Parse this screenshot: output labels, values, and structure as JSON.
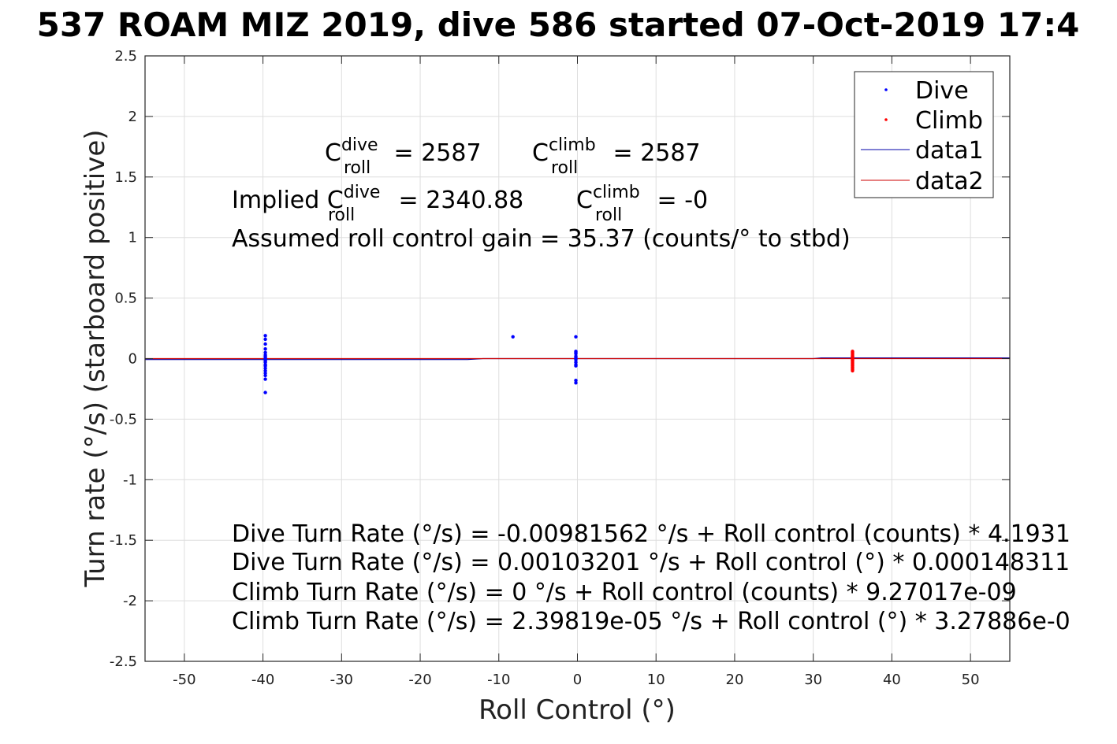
{
  "chart_data": {
    "type": "scatter",
    "title": "537 ROAM MIZ 2019, dive 586 started 07-Oct-2019 17:4",
    "xlabel": "Roll Control (°)",
    "ylabel": "Turn rate (°/s) (starboard positive)",
    "xlim": [
      -55,
      55
    ],
    "ylim": [
      -2.5,
      2.5
    ],
    "xticks": [
      -50,
      -40,
      -30,
      -20,
      -10,
      0,
      10,
      20,
      30,
      40,
      50
    ],
    "yticks": [
      -2.5,
      -2,
      -1.5,
      -1,
      -0.5,
      0,
      0.5,
      1,
      1.5,
      2,
      2.5
    ],
    "xtick_labels": [
      "-50",
      "-40",
      "-30",
      "-20",
      "-10",
      "0",
      "10",
      "20",
      "30",
      "40",
      "50"
    ],
    "ytick_labels": [
      "-2.5",
      "-2",
      "-1.5",
      "-1",
      "-0.5",
      "0",
      "0.5",
      "1",
      "1.5",
      "2",
      "2.5"
    ],
    "grid": true,
    "legend_position": "top-right",
    "series": [
      {
        "name": "Dive",
        "kind": "points",
        "color": "#0000ff",
        "x": [
          -39.7,
          -39.7,
          -39.7,
          -39.7,
          -39.7,
          -39.7,
          -39.7,
          -39.7,
          -39.7,
          -39.7,
          -39.7,
          -39.7,
          -39.7,
          -39.7,
          -39.7,
          -39.7,
          -39.7,
          -39.7,
          -39.7,
          -39.7,
          -8.2,
          -0.2,
          -0.2,
          -0.2,
          -0.2,
          -0.2,
          -0.2,
          -0.2,
          -0.2,
          -0.2,
          -0.2,
          -0.2,
          -0.2,
          -0.2
        ],
        "y": [
          0.19,
          0.16,
          0.12,
          0.08,
          0.05,
          0.03,
          0.02,
          0.01,
          0.0,
          -0.01,
          -0.02,
          -0.03,
          -0.05,
          -0.06,
          -0.08,
          -0.1,
          -0.12,
          -0.14,
          -0.17,
          -0.28,
          0.18,
          0.18,
          0.06,
          0.05,
          0.04,
          0.02,
          0.01,
          0.0,
          -0.01,
          -0.03,
          -0.05,
          -0.06,
          -0.18,
          -0.2
        ]
      },
      {
        "name": "Climb",
        "kind": "points",
        "color": "#ff0000",
        "x": [
          35.0,
          35.0,
          35.0,
          35.0,
          35.0,
          35.0,
          35.0,
          35.0,
          35.0,
          35.0,
          35.0,
          35.0,
          35.0,
          35.0,
          35.0,
          35.0,
          35.0,
          35.0,
          35.0,
          35.0
        ],
        "y": [
          0.06,
          0.05,
          0.04,
          0.03,
          0.02,
          0.01,
          0.0,
          0.0,
          -0.01,
          -0.01,
          -0.02,
          -0.03,
          -0.04,
          -0.05,
          -0.06,
          -0.07,
          -0.08,
          -0.09,
          -0.1,
          0.02
        ]
      },
      {
        "name": "data1",
        "kind": "line",
        "color": "#0000aa",
        "x": [
          -55,
          -14,
          -12,
          30,
          31,
          55
        ],
        "y": [
          -0.008,
          -0.008,
          0.0,
          0.0,
          0.006,
          0.006
        ]
      },
      {
        "name": "data2",
        "kind": "line",
        "color": "#cc0000",
        "x": [
          -55,
          55
        ],
        "y": [
          0.0,
          0.0
        ]
      }
    ],
    "annotations": {
      "c_roll_dive": {
        "C": "C",
        "sup": "dive",
        "sub": "roll",
        "rest": " = 2587"
      },
      "c_roll_climb": {
        "C": "C",
        "sup": "climb",
        "sub": "roll",
        "rest": " = 2587"
      },
      "implied_dive": {
        "prefix": "Implied C",
        "sup": "dive",
        "sub": "roll",
        "rest": " = 2340.88"
      },
      "implied_climb": {
        "C": "C",
        "sup": "climb",
        "sub": "roll",
        "rest": " = -0"
      },
      "gain": "Assumed roll control gain = 35.37 (counts/° to stbd)",
      "eq1": "Dive Turn Rate (°/s) = -0.00981562 °/s + Roll control (counts) * 4.1931",
      "eq2": "Dive Turn Rate (°/s) = 0.00103201 °/s + Roll control (°) * 0.000148311",
      "eq3": "Climb Turn Rate (°/s) = 0 °/s + Roll control (counts) * 9.27017e-09",
      "eq4": "Climb Turn Rate (°/s) = 2.39819e-05 °/s + Roll control (°) * 3.27886e-0"
    }
  }
}
